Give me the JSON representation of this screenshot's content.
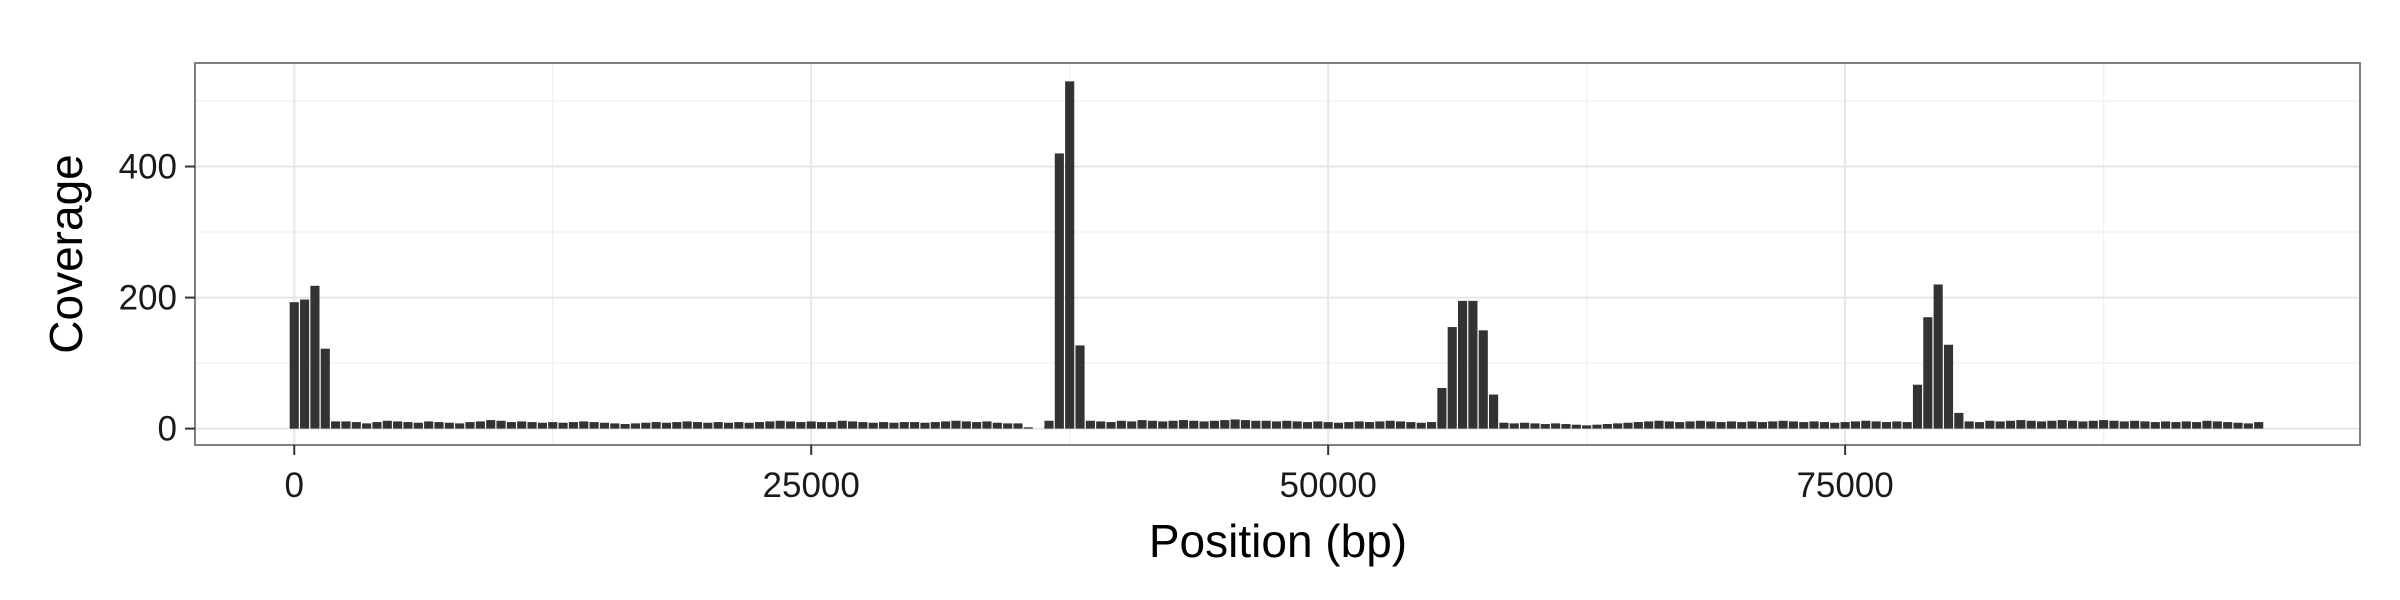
{
  "chart_data": {
    "type": "bar",
    "title": "",
    "xlabel": "Position (bp)",
    "ylabel": "Coverage",
    "xlim": [
      -4800,
      99900
    ],
    "ylim": [
      -25,
      558
    ],
    "x_ticks": [
      0,
      25000,
      50000,
      75000
    ],
    "x_tick_labels": [
      "0",
      "25000",
      "50000",
      "75000"
    ],
    "y_ticks": [
      0,
      200,
      400
    ],
    "y_tick_labels": [
      "0",
      "200",
      "400"
    ],
    "y_minor_ticks": [
      100,
      300,
      500
    ],
    "bin_width": 500,
    "grid": true,
    "colors": {
      "bar": "#333333",
      "panel_border": "#7f7f7f",
      "grid_major": "#e6e6e6",
      "grid_minor": "#f2f2f2"
    },
    "series": [
      {
        "x": [
          0,
          500,
          1000,
          1500,
          2000,
          2500,
          3000,
          3500,
          4000,
          4500,
          5000,
          5500,
          6000,
          6500,
          7000,
          7500,
          8000,
          8500,
          9000,
          9500,
          10000,
          10500,
          11000,
          11500,
          12000,
          12500,
          13000,
          13500,
          14000,
          14500,
          15000,
          15500,
          16000,
          16500,
          17000,
          17500,
          18000,
          18500,
          19000,
          19500,
          20000,
          20500,
          21000,
          21500,
          22000,
          22500,
          23000,
          23500,
          24000,
          24500,
          25000,
          25500,
          26000,
          26500,
          27000,
          27500,
          28000,
          28500,
          29000,
          29500,
          30000,
          30500,
          31000,
          31500,
          32000,
          32500,
          33000,
          33500,
          34000,
          34500,
          35000,
          35500,
          36000,
          36500,
          37000,
          37500,
          38000,
          38500,
          39000,
          39500,
          40000,
          40500,
          41000,
          41500,
          42000,
          42500,
          43000,
          43500,
          44000,
          44500,
          45000,
          45500,
          46000,
          46500,
          47000,
          47500,
          48000,
          48500,
          49000,
          49500,
          50000,
          50500,
          51000,
          51500,
          52000,
          52500,
          53000,
          53500,
          54000,
          54500,
          55000,
          55500,
          56000,
          56500,
          57000,
          57500,
          58000,
          58500,
          59000,
          59500,
          60000,
          60500,
          61000,
          61500,
          62000,
          62500,
          63000,
          63500,
          64000,
          64500,
          65000,
          65500,
          66000,
          66500,
          67000,
          67500,
          68000,
          68500,
          69000,
          69500,
          70000,
          70500,
          71000,
          71500,
          72000,
          72500,
          73000,
          73500,
          74000,
          74500,
          75000,
          75500,
          76000,
          76500,
          77000,
          77500,
          78000,
          78500,
          79000,
          79500,
          80000,
          80500,
          81000,
          81500,
          82000,
          82500,
          83000,
          83500,
          84000,
          84500,
          85000,
          85500,
          86000,
          86500,
          87000,
          87500,
          88000,
          88500,
          89000,
          89500,
          90000,
          90500,
          91000,
          91500,
          92000,
          92500,
          93000,
          93500,
          94000,
          94500,
          95000
        ],
        "values": [
          193,
          197,
          218,
          122,
          11,
          11,
          10,
          8,
          10,
          12,
          11,
          10,
          9,
          11,
          10,
          9,
          8,
          10,
          11,
          13,
          12,
          10,
          11,
          10,
          9,
          10,
          9,
          10,
          11,
          10,
          9,
          8,
          7,
          8,
          9,
          10,
          9,
          10,
          11,
          10,
          9,
          10,
          9,
          10,
          9,
          10,
          11,
          12,
          11,
          10,
          11,
          10,
          10,
          12,
          11,
          10,
          9,
          10,
          9,
          10,
          10,
          9,
          10,
          11,
          12,
          11,
          10,
          11,
          9,
          8,
          8,
          2,
          0,
          12,
          420,
          530,
          127,
          12,
          11,
          10,
          12,
          11,
          13,
          12,
          11,
          12,
          13,
          12,
          11,
          12,
          13,
          14,
          13,
          12,
          12,
          11,
          12,
          11,
          10,
          11,
          10,
          9,
          10,
          11,
          10,
          11,
          12,
          11,
          10,
          9,
          10,
          62,
          155,
          195,
          195,
          150,
          52,
          9,
          8,
          9,
          8,
          7,
          8,
          7,
          6,
          5,
          6,
          7,
          8,
          9,
          10,
          11,
          12,
          11,
          10,
          11,
          12,
          11,
          10,
          11,
          10,
          11,
          10,
          11,
          12,
          11,
          10,
          11,
          10,
          9,
          10,
          11,
          12,
          11,
          10,
          11,
          10,
          67,
          170,
          220,
          128,
          24,
          11,
          10,
          12,
          11,
          12,
          13,
          12,
          11,
          12,
          13,
          12,
          11,
          12,
          13,
          12,
          11,
          12,
          11,
          10,
          11,
          10,
          11,
          10,
          12,
          11,
          10,
          9,
          8,
          10
        ]
      }
    ]
  }
}
